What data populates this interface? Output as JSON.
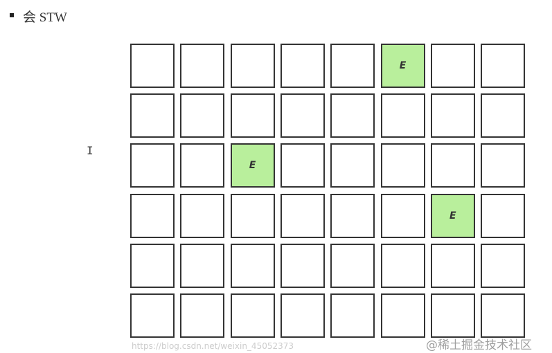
{
  "heading": "会 STW",
  "grid": {
    "rows": 6,
    "cols": 8,
    "label": "E",
    "eden_color": "#b9ef9c",
    "eden_cells": [
      [
        0,
        5
      ],
      [
        2,
        2
      ],
      [
        3,
        6
      ]
    ]
  },
  "watermark": {
    "main": "@稀土掘金技术社区",
    "url": "https://blog.csdn.net/weixin_45052373"
  }
}
